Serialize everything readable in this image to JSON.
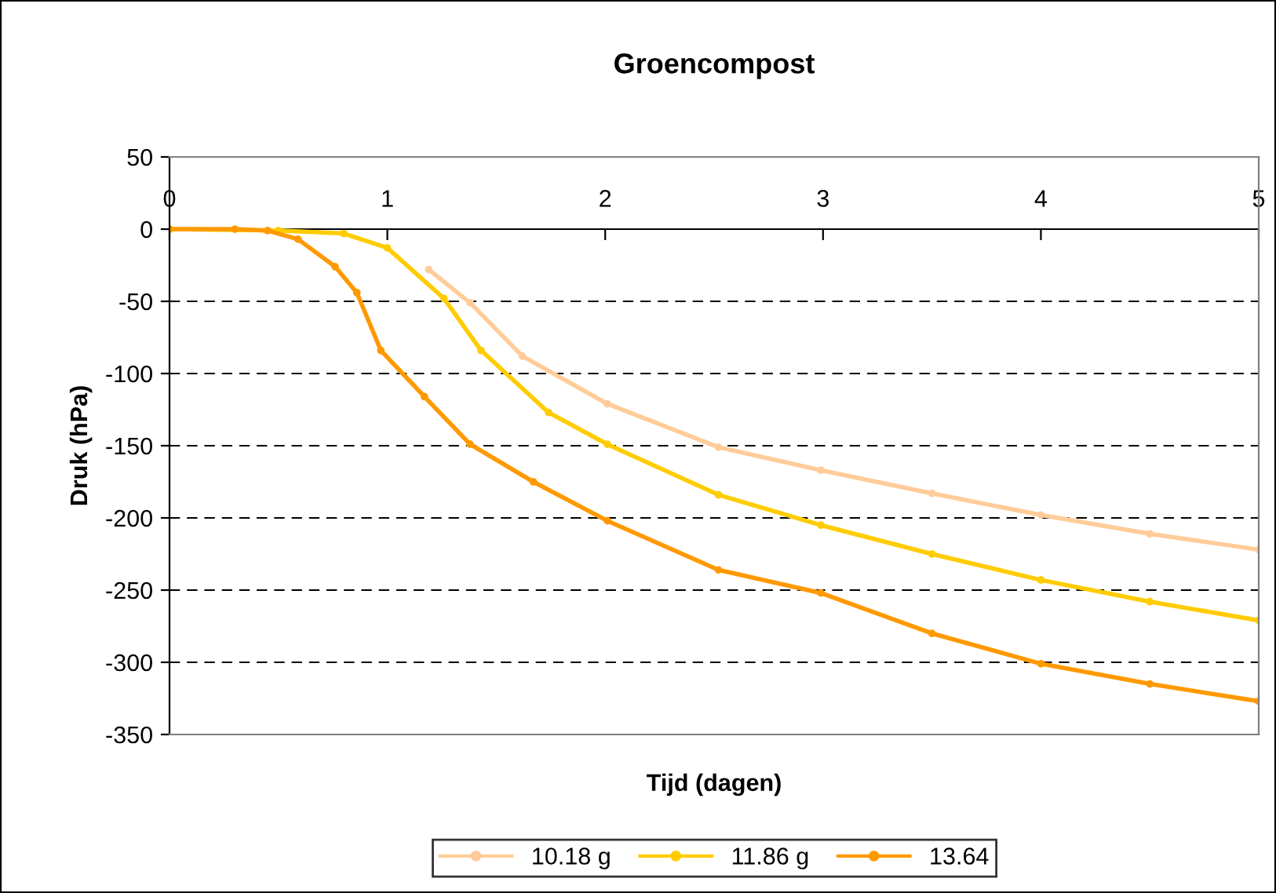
{
  "chart_data": {
    "type": "line",
    "title": "Groencompost",
    "xlabel": "Tijd (dagen)",
    "ylabel": "Druk (hPa)",
    "xlim": [
      0,
      5
    ],
    "xticks": [
      0,
      1,
      2,
      3,
      4,
      5
    ],
    "ylim": [
      -350,
      50
    ],
    "yticks": [
      -350,
      -300,
      -250,
      -200,
      -150,
      -100,
      -50,
      0,
      50
    ],
    "grid": "y",
    "legend": "bottom",
    "marker": "circle",
    "line_style": "solid",
    "series": [
      {
        "name": "10.18 g",
        "color": "#ffcc99",
        "x": [
          0,
          0.5,
          0.8,
          1.0,
          1.19,
          1.38,
          1.62,
          2.01,
          2.52,
          2.99,
          3.5,
          4.0,
          4.5,
          5.0
        ],
        "values": [
          0,
          null,
          null,
          null,
          -28,
          -51,
          -88,
          -121,
          -151,
          -167,
          -183,
          -198,
          -211,
          -222
        ]
      },
      {
        "name": "11.86 g",
        "color": "#ffcc00",
        "x": [
          0,
          0.5,
          0.8,
          1.0,
          1.26,
          1.43,
          1.74,
          2.01,
          2.52,
          2.99,
          3.5,
          4.0,
          4.5,
          5.0
        ],
        "values": [
          0,
          -1,
          -3,
          -13,
          -48,
          -84,
          -127,
          -149,
          -184,
          -205,
          -225,
          -243,
          -258,
          -271
        ]
      },
      {
        "name": "13.64",
        "color": "#ff9900",
        "x": [
          0,
          0.3,
          0.45,
          0.59,
          0.76,
          0.86,
          0.97,
          1.17,
          1.38,
          1.67,
          2.01,
          2.52,
          2.99,
          3.5,
          4.0,
          4.5,
          5.0
        ],
        "values": [
          0,
          0,
          -1,
          -7,
          -26,
          -44,
          -84,
          -116,
          -149,
          -175,
          -202,
          -236,
          -252,
          -280,
          -301,
          -315,
          -327
        ]
      }
    ]
  }
}
